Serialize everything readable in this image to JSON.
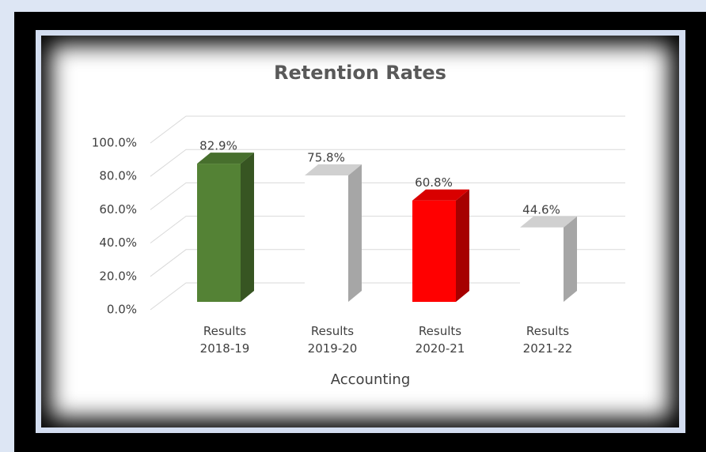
{
  "chart_data": {
    "type": "bar3d",
    "title": "Retention Rates",
    "x_label": "Accounting",
    "categories": [
      "Results 2018-19",
      "Results 2019-20",
      "Results 2020-21",
      "Results 2021-22"
    ],
    "values": [
      82.9,
      75.8,
      60.8,
      44.6
    ],
    "value_labels": [
      "82.9%",
      "75.8%",
      "60.8%",
      "44.6%"
    ],
    "colors": [
      "#548235",
      "#ffffff",
      "#ff0000",
      "#ffffff"
    ],
    "ylim": [
      0,
      100
    ],
    "yticks": [
      {
        "value": 0,
        "label": "0.0%"
      },
      {
        "value": 20,
        "label": "20.0%"
      },
      {
        "value": 40,
        "label": "40.0%"
      },
      {
        "value": 60,
        "label": "60.0%"
      },
      {
        "value": 80,
        "label": "80.0%"
      },
      {
        "value": 100,
        "label": "100.0%"
      }
    ],
    "grid": true
  }
}
